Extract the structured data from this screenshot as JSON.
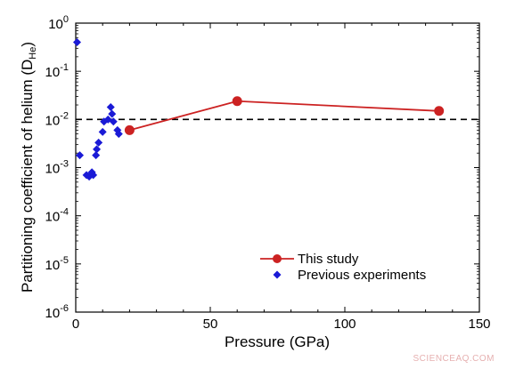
{
  "chart_data": {
    "type": "scatter",
    "xlabel": "Pressure (GPa)",
    "ylabel_main": "Partitioning coefficient of helium (D",
    "ylabel_sub": "He",
    "ylabel_close": ")",
    "xlim": [
      0,
      150
    ],
    "ylim_log10": [
      -6,
      0
    ],
    "y_scale": "log",
    "x_ticks": [
      0,
      50,
      100,
      150
    ],
    "y_tick_exponents": [
      -6,
      -5,
      -4,
      -3,
      -2,
      -1,
      0
    ],
    "y_tick_base": "10",
    "x_tick_labels": [
      "0",
      "50",
      "100",
      "150"
    ],
    "reference_line": {
      "y": 0.01,
      "style": "dashed",
      "color": "#000000"
    },
    "legend_position": "bottom-right",
    "series": [
      {
        "name": "This study",
        "marker": "circle",
        "connected": true,
        "color": "#cc2222",
        "points": [
          {
            "x": 20,
            "y": 0.006
          },
          {
            "x": 60,
            "y": 0.024
          },
          {
            "x": 135,
            "y": 0.015
          }
        ]
      },
      {
        "name": "Previous experiments",
        "marker": "diamond",
        "connected": false,
        "color": "#1a1ad6",
        "points": [
          {
            "x": 0.5,
            "y": 0.4
          },
          {
            "x": 1.5,
            "y": 0.0018
          },
          {
            "x": 4,
            "y": 0.0007
          },
          {
            "x": 5,
            "y": 0.00065
          },
          {
            "x": 6,
            "y": 0.0008
          },
          {
            "x": 6.5,
            "y": 0.0007
          },
          {
            "x": 7.5,
            "y": 0.0018
          },
          {
            "x": 7.8,
            "y": 0.0024
          },
          {
            "x": 8.5,
            "y": 0.0033
          },
          {
            "x": 10,
            "y": 0.0055
          },
          {
            "x": 10.5,
            "y": 0.009
          },
          {
            "x": 12,
            "y": 0.01
          },
          {
            "x": 13,
            "y": 0.018
          },
          {
            "x": 13.5,
            "y": 0.013
          },
          {
            "x": 14,
            "y": 0.009
          },
          {
            "x": 15.5,
            "y": 0.006
          },
          {
            "x": 16,
            "y": 0.005
          }
        ]
      }
    ]
  },
  "watermark": "SCIENCEAQ.COM"
}
